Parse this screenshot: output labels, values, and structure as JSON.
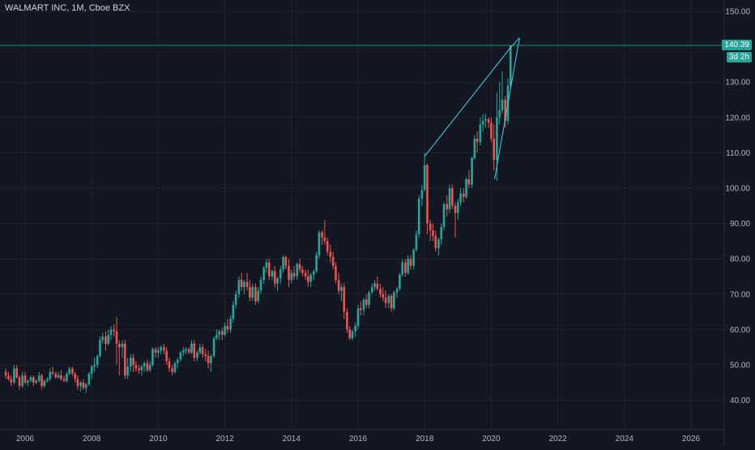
{
  "header": {
    "symbol": "WALMART INC, 1M, Cboe BZX"
  },
  "colors": {
    "background": "#131722",
    "grid": "#1e222d",
    "up": "#26a69a",
    "down": "#ef5350",
    "trendline": "#4dd0e1",
    "axis_text": "#b2b5be",
    "price_tag": "#26a69a"
  },
  "price_tag": {
    "value": "140.39",
    "countdown": "3d 2h"
  },
  "chart_data": {
    "type": "candlestick",
    "title": "WALMART INC, 1M, Cboe BZX",
    "y_ticks": [
      "150.00",
      "140.00",
      "130.00",
      "120.00",
      "110.00",
      "100.00",
      "90.00",
      "80.00",
      "70.00",
      "60.00",
      "50.00",
      "40.00"
    ],
    "x_ticks": [
      "2006",
      "2008",
      "2010",
      "2012",
      "2014",
      "2016",
      "2018",
      "2020",
      "2022",
      "2024",
      "2026"
    ],
    "ylim": [
      35,
      152
    ],
    "xlim": [
      2005.4,
      2027.0
    ],
    "grid": true,
    "last_price": 140.39,
    "trendlines": [
      {
        "from": [
          2018.0,
          109.0
        ],
        "to": [
          2020.6,
          140.0
        ]
      },
      {
        "from": [
          2020.1,
          102.5
        ],
        "to": [
          2020.85,
          142.5
        ]
      },
      {
        "from": [
          2020.6,
          140.0
        ],
        "to": [
          2020.85,
          142.5
        ]
      }
    ],
    "candles": [
      [
        2005.42,
        48,
        49,
        46,
        47
      ],
      [
        2005.5,
        47,
        48,
        45.5,
        46
      ],
      [
        2005.58,
        46,
        47,
        44,
        45
      ],
      [
        2005.67,
        45,
        50,
        44.5,
        49
      ],
      [
        2005.75,
        49,
        50,
        46,
        46.5
      ],
      [
        2005.83,
        46.5,
        47,
        43,
        44
      ],
      [
        2005.92,
        44,
        48,
        43.5,
        47
      ],
      [
        2006.0,
        47,
        48,
        44.5,
        45
      ],
      [
        2006.08,
        45,
        46,
        44,
        45.5
      ],
      [
        2006.17,
        45.5,
        47,
        45,
        46.5
      ],
      [
        2006.25,
        46.5,
        47,
        44,
        45
      ],
      [
        2006.33,
        45,
        46,
        44.5,
        45.5
      ],
      [
        2006.42,
        45.5,
        48,
        45,
        47
      ],
      [
        2006.5,
        47,
        47.5,
        43,
        44
      ],
      [
        2006.58,
        44,
        46,
        43.5,
        45.5
      ],
      [
        2006.67,
        45.5,
        46.5,
        45,
        46
      ],
      [
        2006.75,
        46,
        49,
        45.5,
        48
      ],
      [
        2006.83,
        48,
        49.5,
        47,
        47.5
      ],
      [
        2006.92,
        47.5,
        48,
        46,
        46.5
      ],
      [
        2007.0,
        46.5,
        48,
        46,
        47
      ],
      [
        2007.08,
        47,
        48.5,
        45.5,
        46
      ],
      [
        2007.17,
        46,
        47,
        45,
        45.5
      ],
      [
        2007.25,
        45.5,
        48,
        45,
        47.5
      ],
      [
        2007.33,
        47.5,
        49.5,
        47,
        49
      ],
      [
        2007.42,
        49,
        49.5,
        47,
        47.5
      ],
      [
        2007.5,
        47.5,
        48,
        45,
        46
      ],
      [
        2007.58,
        46,
        47,
        43,
        44
      ],
      [
        2007.67,
        44,
        45.5,
        42.5,
        45
      ],
      [
        2007.75,
        45,
        46,
        43,
        43.5
      ],
      [
        2007.83,
        43.5,
        45,
        42,
        44.5
      ],
      [
        2007.92,
        44.5,
        48,
        44,
        47.5
      ],
      [
        2008.0,
        47.5,
        50,
        46,
        49.5
      ],
      [
        2008.08,
        49.5,
        52,
        48,
        50
      ],
      [
        2008.17,
        50,
        53,
        49,
        52.5
      ],
      [
        2008.25,
        52.5,
        58,
        52,
        57
      ],
      [
        2008.33,
        57,
        59,
        56,
        58
      ],
      [
        2008.42,
        58,
        59.5,
        54,
        56
      ],
      [
        2008.5,
        56,
        60,
        55.5,
        58.5
      ],
      [
        2008.58,
        58.5,
        61,
        57,
        60
      ],
      [
        2008.67,
        60,
        61.5,
        58,
        59.5
      ],
      [
        2008.75,
        59.5,
        63.5,
        50,
        56
      ],
      [
        2008.83,
        56,
        57,
        47,
        55
      ],
      [
        2008.92,
        55,
        57,
        52,
        56
      ],
      [
        2009.0,
        56,
        57,
        46,
        47
      ],
      [
        2009.08,
        47,
        52,
        46,
        49.5
      ],
      [
        2009.17,
        49.5,
        53,
        48,
        52
      ],
      [
        2009.25,
        52,
        53,
        48,
        50
      ],
      [
        2009.33,
        50,
        51,
        48,
        49
      ],
      [
        2009.42,
        49,
        50,
        47.5,
        48.5
      ],
      [
        2009.5,
        48.5,
        50,
        47,
        49.5
      ],
      [
        2009.58,
        49.5,
        51,
        48,
        50.5
      ],
      [
        2009.67,
        50.5,
        51.5,
        48,
        48.5
      ],
      [
        2009.75,
        48.5,
        51,
        48,
        50
      ],
      [
        2009.83,
        50,
        55,
        49.5,
        54.5
      ],
      [
        2009.92,
        54.5,
        55,
        52,
        53.5
      ],
      [
        2010.0,
        53.5,
        55,
        52,
        54
      ],
      [
        2010.08,
        54,
        55.5,
        53,
        55
      ],
      [
        2010.17,
        55,
        56,
        53,
        54
      ],
      [
        2010.25,
        54,
        55,
        50,
        51
      ],
      [
        2010.33,
        51,
        52,
        48,
        49
      ],
      [
        2010.42,
        49,
        50,
        47,
        48
      ],
      [
        2010.5,
        48,
        51,
        47.5,
        50.5
      ],
      [
        2010.58,
        50.5,
        52,
        49,
        51.5
      ],
      [
        2010.67,
        51.5,
        54,
        51,
        53.5
      ],
      [
        2010.75,
        53.5,
        55,
        52.5,
        54
      ],
      [
        2010.83,
        54,
        55,
        53,
        54.5
      ],
      [
        2010.92,
        54.5,
        55,
        53,
        53.5
      ],
      [
        2011.0,
        53.5,
        57,
        53,
        56
      ],
      [
        2011.08,
        56,
        57,
        51,
        52
      ],
      [
        2011.17,
        52,
        54,
        51,
        53.5
      ],
      [
        2011.25,
        53.5,
        56,
        53,
        55
      ],
      [
        2011.33,
        55,
        56,
        52,
        53
      ],
      [
        2011.42,
        53,
        54.5,
        51,
        52.5
      ],
      [
        2011.5,
        52.5,
        54,
        49,
        50.5
      ],
      [
        2011.58,
        50.5,
        53,
        48,
        52.5
      ],
      [
        2011.67,
        52.5,
        58,
        52,
        57.5
      ],
      [
        2011.75,
        57.5,
        60,
        57,
        58.5
      ],
      [
        2011.83,
        58.5,
        60,
        57,
        59.5
      ],
      [
        2011.92,
        59.5,
        60.5,
        57,
        58.5
      ],
      [
        2012.0,
        58.5,
        62,
        58,
        61
      ],
      [
        2012.08,
        61,
        63,
        59,
        60
      ],
      [
        2012.17,
        60,
        64,
        59,
        63
      ],
      [
        2012.25,
        63,
        68,
        62,
        67
      ],
      [
        2012.33,
        67,
        71,
        66,
        70
      ],
      [
        2012.42,
        70,
        75,
        69,
        74
      ],
      [
        2012.5,
        74,
        76,
        71,
        72
      ],
      [
        2012.58,
        72,
        74,
        70,
        73.5
      ],
      [
        2012.67,
        73.5,
        76,
        71,
        72
      ],
      [
        2012.75,
        72,
        74,
        68,
        69
      ],
      [
        2012.83,
        69,
        73,
        68,
        72
      ],
      [
        2012.92,
        72,
        73,
        67,
        68
      ],
      [
        2013.0,
        68,
        72,
        67.5,
        71
      ],
      [
        2013.08,
        71,
        75,
        70,
        74
      ],
      [
        2013.17,
        74,
        78,
        73,
        77.5
      ],
      [
        2013.25,
        77.5,
        80,
        76,
        79
      ],
      [
        2013.33,
        79,
        80,
        74,
        75
      ],
      [
        2013.42,
        75,
        77,
        74,
        76.5
      ],
      [
        2013.5,
        76.5,
        78,
        72,
        73
      ],
      [
        2013.58,
        73,
        75,
        71,
        74.5
      ],
      [
        2013.67,
        74.5,
        78,
        73,
        77
      ],
      [
        2013.75,
        77,
        81,
        76,
        80.5
      ],
      [
        2013.83,
        80.5,
        81,
        77,
        78
      ],
      [
        2013.92,
        78,
        80,
        72,
        74
      ],
      [
        2014.0,
        74,
        77,
        73,
        76
      ],
      [
        2014.08,
        76,
        78,
        74,
        75
      ],
      [
        2014.17,
        75,
        79,
        74,
        78.5
      ],
      [
        2014.25,
        78.5,
        80,
        76,
        77
      ],
      [
        2014.33,
        77,
        78,
        75,
        76
      ],
      [
        2014.42,
        76,
        77,
        74,
        75
      ],
      [
        2014.5,
        75,
        77,
        72,
        73.5
      ],
      [
        2014.58,
        73.5,
        76,
        72,
        75.5
      ],
      [
        2014.67,
        75.5,
        77,
        74,
        76.5
      ],
      [
        2014.75,
        76.5,
        82,
        76,
        81
      ],
      [
        2014.83,
        81,
        88,
        80,
        87.5
      ],
      [
        2014.92,
        87.5,
        88,
        84,
        86
      ],
      [
        2015.0,
        86,
        91,
        84,
        85
      ],
      [
        2015.08,
        85,
        86,
        81,
        82
      ],
      [
        2015.17,
        82,
        84,
        79,
        80.5
      ],
      [
        2015.25,
        80.5,
        82,
        77,
        78
      ],
      [
        2015.33,
        78,
        79,
        73,
        74
      ],
      [
        2015.42,
        74,
        76,
        70,
        71
      ],
      [
        2015.5,
        71,
        73,
        68,
        72
      ],
      [
        2015.58,
        72,
        73,
        63,
        65
      ],
      [
        2015.67,
        65,
        66,
        59,
        60
      ],
      [
        2015.75,
        60,
        61,
        57,
        57.5
      ],
      [
        2015.83,
        57.5,
        60,
        57,
        59.5
      ],
      [
        2015.92,
        59.5,
        62,
        58,
        61
      ],
      [
        2016.0,
        61,
        67,
        60,
        66
      ],
      [
        2016.08,
        66,
        68,
        64,
        65.5
      ],
      [
        2016.17,
        65.5,
        69,
        64,
        68.5
      ],
      [
        2016.25,
        68.5,
        70,
        66,
        67
      ],
      [
        2016.33,
        67,
        71,
        66,
        70.5
      ],
      [
        2016.42,
        70.5,
        73,
        70,
        72
      ],
      [
        2016.5,
        72,
        74,
        71,
        73
      ],
      [
        2016.58,
        73,
        75,
        71,
        71.5
      ],
      [
        2016.67,
        71.5,
        73,
        69,
        70
      ],
      [
        2016.75,
        70,
        72,
        68,
        69
      ],
      [
        2016.83,
        69,
        71,
        66,
        67.5
      ],
      [
        2016.92,
        67.5,
        70,
        66,
        69.5
      ],
      [
        2017.0,
        69.5,
        70,
        65,
        66
      ],
      [
        2017.08,
        66,
        71,
        65.5,
        70.5
      ],
      [
        2017.17,
        70.5,
        72,
        69,
        71.5
      ],
      [
        2017.25,
        71.5,
        76,
        71,
        75.5
      ],
      [
        2017.33,
        75.5,
        80,
        75,
        79
      ],
      [
        2017.42,
        79,
        80,
        75,
        76
      ],
      [
        2017.5,
        76,
        81,
        75.5,
        80
      ],
      [
        2017.58,
        80,
        81,
        77,
        78
      ],
      [
        2017.67,
        78,
        83,
        77,
        82.5
      ],
      [
        2017.75,
        82.5,
        88,
        82,
        87
      ],
      [
        2017.83,
        87,
        98,
        86,
        97
      ],
      [
        2017.92,
        97,
        101,
        95,
        99.5
      ],
      [
        2018.0,
        99.5,
        110,
        99,
        106.5
      ],
      [
        2018.08,
        106.5,
        107,
        87,
        90
      ],
      [
        2018.17,
        90,
        91,
        85,
        88
      ],
      [
        2018.25,
        88,
        90,
        85,
        86.5
      ],
      [
        2018.33,
        86.5,
        88,
        82,
        83
      ],
      [
        2018.42,
        83,
        86,
        81,
        85.5
      ],
      [
        2018.5,
        85.5,
        90,
        84,
        89
      ],
      [
        2018.58,
        89,
        96,
        88,
        95.5
      ],
      [
        2018.67,
        95.5,
        98,
        92,
        94
      ],
      [
        2018.75,
        94,
        101,
        93,
        100
      ],
      [
        2018.83,
        100,
        101,
        94,
        95
      ],
      [
        2018.92,
        95,
        96,
        86,
        93
      ],
      [
        2019.0,
        93,
        97,
        91,
        96
      ],
      [
        2019.08,
        96,
        100,
        95,
        98.5
      ],
      [
        2019.17,
        98.5,
        100,
        96,
        97.5
      ],
      [
        2019.25,
        97.5,
        103,
        97,
        102.5
      ],
      [
        2019.33,
        102.5,
        105,
        100,
        101
      ],
      [
        2019.42,
        101,
        109,
        100,
        108.5
      ],
      [
        2019.5,
        108.5,
        115,
        108,
        114
      ],
      [
        2019.58,
        114,
        116,
        110,
        113
      ],
      [
        2019.67,
        113,
        120,
        112,
        118
      ],
      [
        2019.75,
        118,
        121,
        116,
        119
      ],
      [
        2019.83,
        119,
        121,
        117,
        119.5
      ],
      [
        2019.92,
        119.5,
        120,
        117,
        118.5
      ],
      [
        2020.0,
        118.5,
        120,
        113,
        114
      ],
      [
        2020.08,
        114,
        118,
        105,
        108
      ],
      [
        2020.17,
        108,
        127,
        102,
        120
      ],
      [
        2020.25,
        120,
        130,
        118,
        122
      ],
      [
        2020.33,
        122,
        133,
        121,
        125
      ],
      [
        2020.42,
        125,
        126,
        117,
        119
      ],
      [
        2020.5,
        119,
        131,
        118,
        129
      ],
      [
        2020.58,
        129,
        140.4,
        128,
        140.39
      ]
    ]
  }
}
